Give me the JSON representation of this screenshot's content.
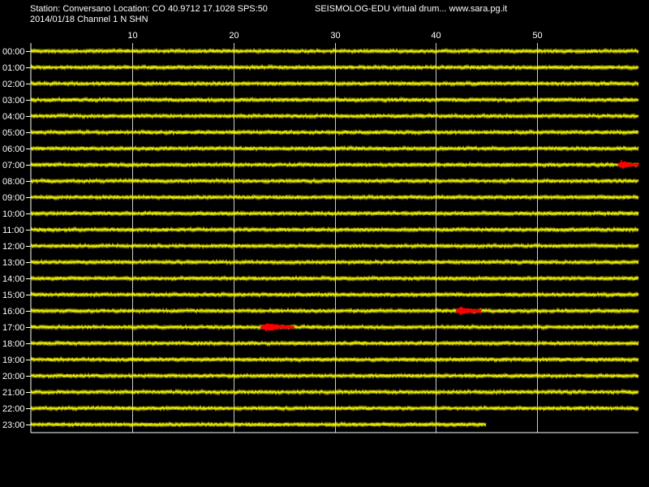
{
  "header": {
    "station_line": "Station: Conversano Location: CO 40.9712 17.1028 SPS:50",
    "brand_line": "SEISMOLOG-EDU virtual drum... www.sara.pg.it",
    "date_line": "2014/01/18  Channel 1 N SHN"
  },
  "colors": {
    "background": "#000000",
    "trace": "#ffff00",
    "event": "#ff0000",
    "grid": "#ffffff",
    "text": "#ffffff"
  },
  "chart_data": {
    "type": "line",
    "title": "",
    "xlabel": "",
    "ylabel": "",
    "xlim": [
      0,
      60
    ],
    "x_ticks": [
      10,
      20,
      30,
      40,
      50
    ],
    "grid": true,
    "rows": [
      "00:00",
      "01:00",
      "02:00",
      "03:00",
      "04:00",
      "05:00",
      "06:00",
      "07:00",
      "08:00",
      "09:00",
      "10:00",
      "11:00",
      "12:00",
      "13:00",
      "14:00",
      "15:00",
      "16:00",
      "17:00",
      "18:00",
      "19:00",
      "20:00",
      "21:00",
      "22:00",
      "23:00"
    ],
    "last_row_end_minute": 45,
    "events": [
      {
        "row": "07:00",
        "start": 58.0,
        "end": 60.0
      },
      {
        "row": "16:00",
        "start": 42.0,
        "end": 44.5
      },
      {
        "row": "17:00",
        "start": 22.7,
        "end": 26.0
      }
    ]
  }
}
